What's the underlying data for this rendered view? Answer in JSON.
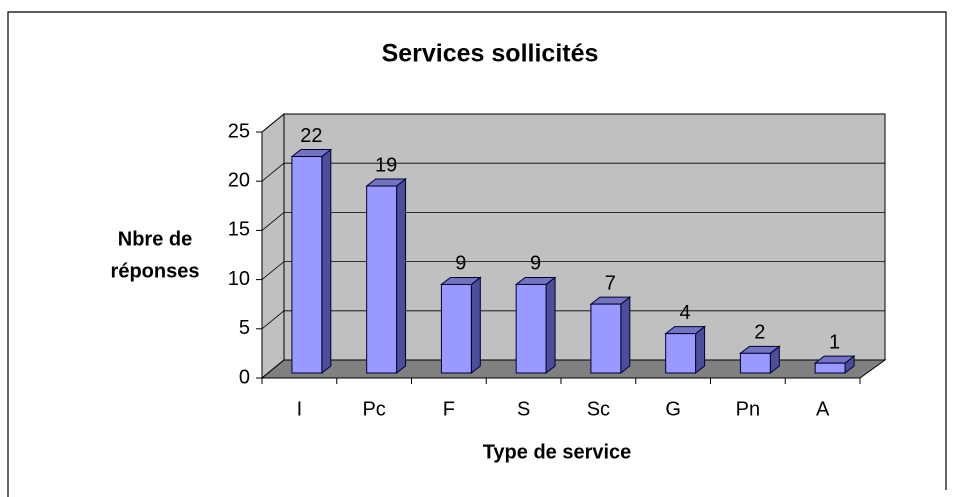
{
  "chart_data": {
    "type": "bar3d",
    "title": "Services sollicités",
    "categories": [
      "I",
      "Pc",
      "F",
      "S",
      "Sc",
      "G",
      "Pn",
      "A"
    ],
    "values": [
      22,
      19,
      9,
      9,
      7,
      4,
      2,
      1
    ],
    "color": "#9999ff",
    "ylabel": [
      "Nbre de",
      "réponses"
    ],
    "xlabel": "Type de service",
    "ylim": [
      0,
      25
    ],
    "yticks": [
      0,
      5,
      10,
      15,
      20,
      25
    ],
    "grid": true
  }
}
